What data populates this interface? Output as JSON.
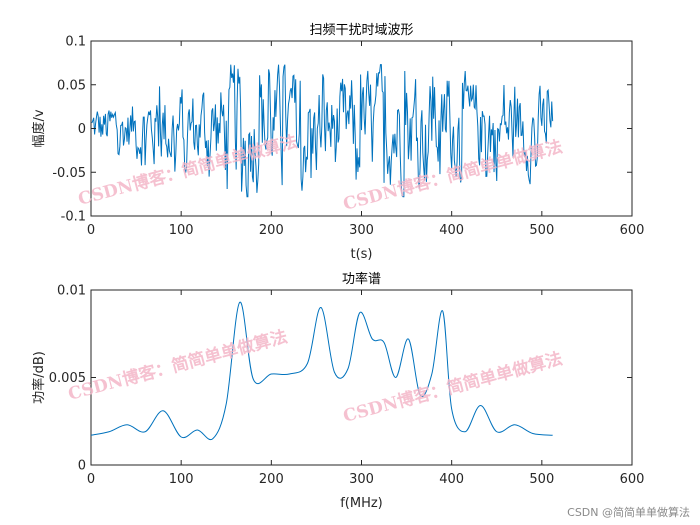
{
  "watermark": {
    "text": "CSDN博客：简简单单做算法",
    "color": "#f4b6c8",
    "footer": "CSDN @简简单单做算法"
  },
  "chart_data": [
    {
      "type": "line",
      "title": "扫频干扰时域波形",
      "xlabel": "t(s)",
      "ylabel": "幅度/v",
      "xlim": [
        0,
        600
      ],
      "ylim": [
        -0.1,
        0.1
      ],
      "xticks": [
        0,
        100,
        200,
        300,
        400,
        500,
        600
      ],
      "yticks": [
        -0.1,
        -0.05,
        0,
        0.05,
        0.1
      ],
      "xtick_labels": [
        "0",
        "100",
        "200",
        "300",
        "400",
        "500",
        "600"
      ],
      "ytick_labels": [
        "-0.1",
        "-0.05",
        "0",
        "0.05",
        "0.1"
      ],
      "grid": false,
      "series": [
        {
          "color": "#0072bd",
          "x_range": [
            1,
            512
          ],
          "amplitude_envelope": [
            {
              "x": 0,
              "amp": 0.028
            },
            {
              "x": 40,
              "amp": 0.035
            },
            {
              "x": 80,
              "amp": 0.055
            },
            {
              "x": 120,
              "amp": 0.05
            },
            {
              "x": 160,
              "amp": 0.075
            },
            {
              "x": 220,
              "amp": 0.065
            },
            {
              "x": 280,
              "amp": 0.06
            },
            {
              "x": 340,
              "amp": 0.07
            },
            {
              "x": 400,
              "amp": 0.055
            },
            {
              "x": 460,
              "amp": 0.055
            },
            {
              "x": 512,
              "amp": 0.045
            }
          ],
          "y_range": [
            -0.078,
            0.073
          ]
        }
      ]
    },
    {
      "type": "line",
      "title": "功率谱",
      "xlabel": "f(MHz)",
      "ylabel": "功率/dB)",
      "xlim": [
        0,
        600
      ],
      "ylim": [
        0,
        0.01
      ],
      "xticks": [
        0,
        100,
        200,
        300,
        400,
        500,
        600
      ],
      "yticks": [
        0,
        0.005,
        0.01
      ],
      "xtick_labels": [
        "0",
        "100",
        "200",
        "300",
        "400",
        "500",
        "600"
      ],
      "ytick_labels": [
        "0",
        "0.005",
        "0.01"
      ],
      "grid": false,
      "series": [
        {
          "color": "#0072bd",
          "x": [
            0,
            20,
            40,
            60,
            80,
            100,
            118,
            135,
            150,
            165,
            180,
            200,
            220,
            240,
            255,
            270,
            285,
            298,
            312,
            325,
            338,
            352,
            365,
            378,
            390,
            400,
            415,
            432,
            450,
            470,
            490,
            512
          ],
          "y": [
            0.0017,
            0.0019,
            0.0023,
            0.0019,
            0.0031,
            0.0016,
            0.002,
            0.0015,
            0.0035,
            0.0093,
            0.0049,
            0.0052,
            0.0052,
            0.0058,
            0.009,
            0.0053,
            0.0055,
            0.0087,
            0.0072,
            0.007,
            0.005,
            0.0072,
            0.004,
            0.0052,
            0.0088,
            0.0032,
            0.0019,
            0.0034,
            0.0019,
            0.0023,
            0.0018,
            0.0017
          ]
        }
      ]
    }
  ]
}
